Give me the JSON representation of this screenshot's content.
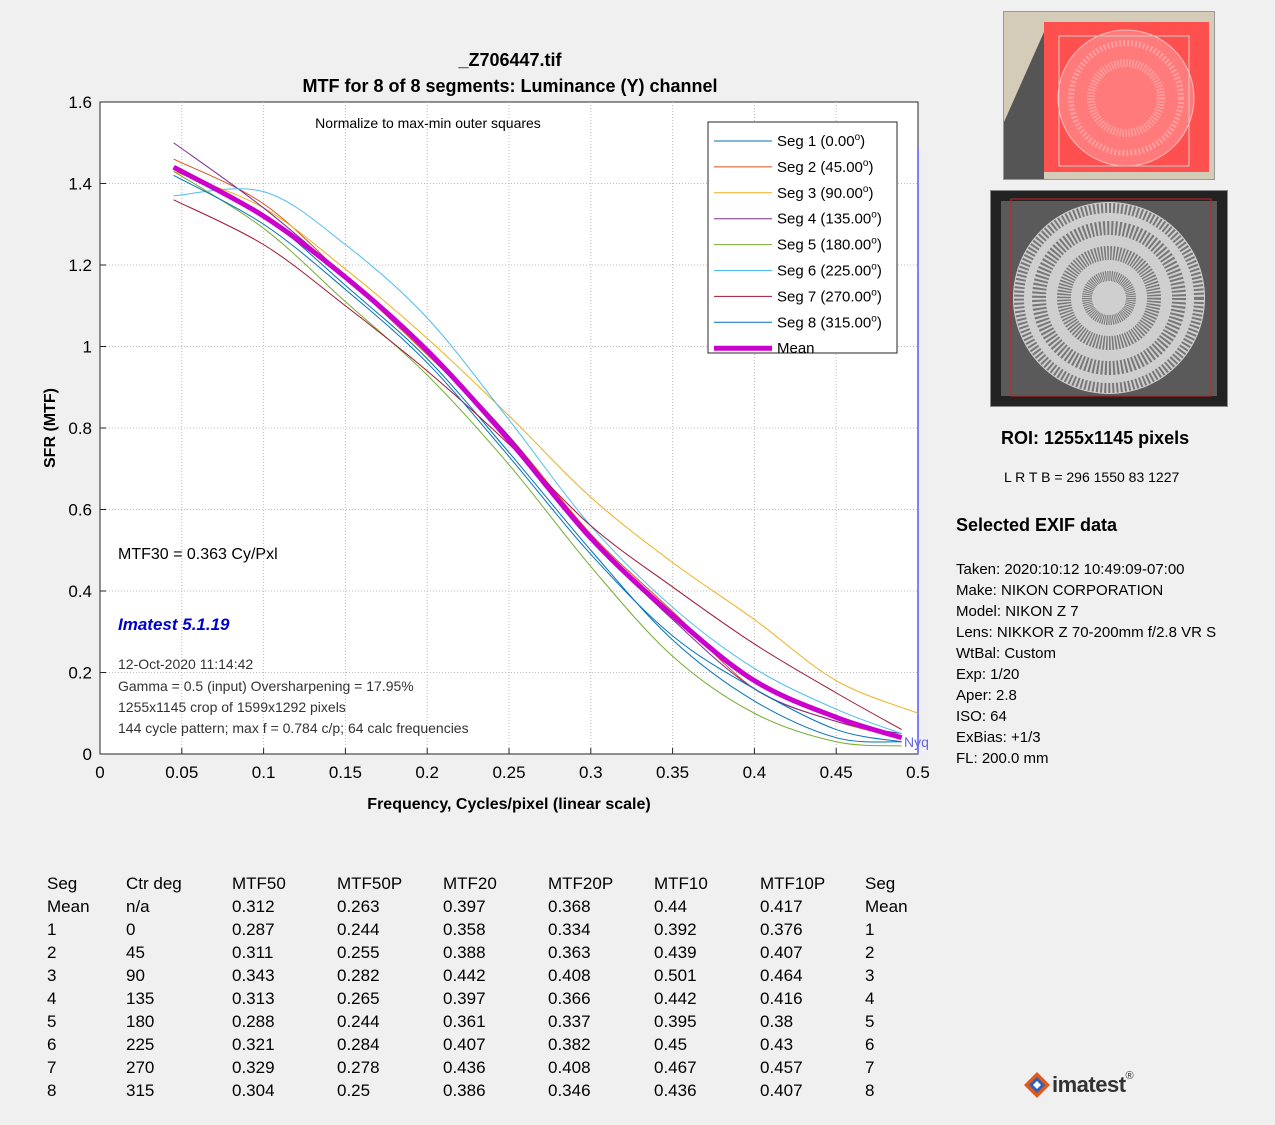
{
  "file_title": "_Z706447.tif",
  "subtitle": "MTF for 8 of 8 segments:  Luminance (Y) channel",
  "normalize_note": "Normalize to max-min outer squares",
  "mtf30_text": "MTF30 = 0.363 Cy/Pxl",
  "version": "Imatest 5.1.19",
  "info_lines": [
    "12-Oct-2020 11:14:42",
    "Gamma = 0.5 (input)  Oversharpening = 17.95%",
    "1255x1145 crop of 1599x1292 pixels",
    "144 cycle pattern; max f = 0.784 c/p;  64 calc frequencies"
  ],
  "nyquist_label": "Nyq",
  "roi": {
    "title": "ROI:  1255x1145 pixels",
    "lrtb": "L R  T B = 296  1550  83  1227"
  },
  "exif": {
    "heading": "Selected EXIF data",
    "lines": [
      "Taken: 2020:10:12 10:49:09-07:00",
      "Make:  NIKON CORPORATION",
      "Model: NIKON Z 7",
      "Lens:  NIKKOR Z 70-200mm f/2.8 VR S",
      "WtBal: Custom",
      "Exp:   1/20",
      "Aper:  2.8",
      "ISO:   64",
      "ExBias: +1/3",
      "FL:  200.0 mm"
    ]
  },
  "table": {
    "headers": [
      "Seg",
      "Ctr deg",
      "MTF50",
      "MTF50P",
      "MTF20",
      "MTF20P",
      "MTF10",
      "MTF10P",
      "Seg"
    ],
    "rows": [
      [
        "Mean",
        "n/a",
        "0.312",
        "0.263",
        "0.397",
        "0.368",
        "0.44",
        "0.417",
        "Mean"
      ],
      [
        "1",
        "0",
        "0.287",
        "0.244",
        "0.358",
        "0.334",
        "0.392",
        "0.376",
        "1"
      ],
      [
        "2",
        "45",
        "0.311",
        "0.255",
        "0.388",
        "0.363",
        "0.439",
        "0.407",
        "2"
      ],
      [
        "3",
        "90",
        "0.343",
        "0.282",
        "0.442",
        "0.408",
        "0.501",
        "0.464",
        "3"
      ],
      [
        "4",
        "135",
        "0.313",
        "0.265",
        "0.397",
        "0.366",
        "0.442",
        "0.416",
        "4"
      ],
      [
        "5",
        "180",
        "0.288",
        "0.244",
        "0.361",
        "0.337",
        "0.395",
        "0.38",
        "5"
      ],
      [
        "6",
        "225",
        "0.321",
        "0.284",
        "0.407",
        "0.382",
        "0.45",
        "0.43",
        "6"
      ],
      [
        "7",
        "270",
        "0.329",
        "0.278",
        "0.436",
        "0.408",
        "0.467",
        "0.457",
        "7"
      ],
      [
        "8",
        "315",
        "0.304",
        "0.25",
        "0.386",
        "0.346",
        "0.436",
        "0.407",
        "8"
      ]
    ]
  },
  "logo_text": "imatest",
  "chart_data": {
    "type": "line",
    "xlabel": "Frequency, Cycles/pixel (linear scale)",
    "ylabel": "SFR (MTF)",
    "xlim": [
      0,
      0.5
    ],
    "ylim": [
      0,
      1.6
    ],
    "x_ticks": [
      0,
      0.05,
      0.1,
      0.15,
      0.2,
      0.25,
      0.3,
      0.35,
      0.4,
      0.45,
      0.5
    ],
    "x_tick_labels": [
      "0",
      "0.05",
      "0.1",
      "0.15",
      "0.2",
      "0.25",
      "0.3",
      "0.35",
      "0.4",
      "0.45",
      "0.5"
    ],
    "y_ticks": [
      0,
      0.2,
      0.4,
      0.6,
      0.8,
      1,
      1.2,
      1.4,
      1.6
    ],
    "y_tick_labels": [
      "0",
      "0.2",
      "0.4",
      "0.6",
      "0.8",
      "1",
      "1.2",
      "1.4",
      "1.6"
    ],
    "grid": true,
    "legend_position": "top-right",
    "nyquist_x": 0.5,
    "series": [
      {
        "name": "Seg 1 (0.00",
        "sup": "o",
        "color": "#0072bd",
        "width": 1,
        "x": [
          0.045,
          0.1,
          0.15,
          0.2,
          0.25,
          0.3,
          0.35,
          0.4,
          0.45,
          0.49
        ],
        "y": [
          1.44,
          1.32,
          1.15,
          0.97,
          0.74,
          0.5,
          0.28,
          0.13,
          0.04,
          0.03
        ]
      },
      {
        "name": "Seg 2 (45.00",
        "sup": "o",
        "color": "#d95319",
        "width": 1,
        "x": [
          0.045,
          0.1,
          0.15,
          0.2,
          0.25,
          0.3,
          0.35,
          0.4,
          0.45,
          0.49
        ],
        "y": [
          1.46,
          1.35,
          1.17,
          0.98,
          0.78,
          0.54,
          0.35,
          0.16,
          0.08,
          0.04
        ]
      },
      {
        "name": "Seg 3 (90.00",
        "sup": "o",
        "color": "#edb120",
        "width": 1,
        "x": [
          0.045,
          0.1,
          0.15,
          0.2,
          0.25,
          0.3,
          0.35,
          0.4,
          0.45,
          0.5
        ],
        "y": [
          1.43,
          1.34,
          1.19,
          1.02,
          0.83,
          0.63,
          0.47,
          0.33,
          0.18,
          0.1
        ]
      },
      {
        "name": "Seg 4 (135.00",
        "sup": "o",
        "color": "#7e2f8e",
        "width": 1,
        "x": [
          0.045,
          0.1,
          0.15,
          0.2,
          0.25,
          0.3,
          0.35,
          0.4,
          0.45,
          0.49
        ],
        "y": [
          1.5,
          1.34,
          1.17,
          0.99,
          0.78,
          0.53,
          0.33,
          0.16,
          0.08,
          0.05
        ]
      },
      {
        "name": "Seg 5 (180.00",
        "sup": "o",
        "color": "#77ac30",
        "width": 1,
        "x": [
          0.045,
          0.1,
          0.15,
          0.2,
          0.25,
          0.3,
          0.35,
          0.4,
          0.45,
          0.49
        ],
        "y": [
          1.43,
          1.29,
          1.11,
          0.93,
          0.71,
          0.46,
          0.24,
          0.1,
          0.03,
          0.02
        ]
      },
      {
        "name": "Seg 6 (225.00",
        "sup": "o",
        "color": "#4dbeee",
        "width": 1,
        "x": [
          0.045,
          0.1,
          0.15,
          0.2,
          0.25,
          0.3,
          0.35,
          0.4,
          0.45,
          0.49
        ],
        "y": [
          1.37,
          1.38,
          1.25,
          1.07,
          0.82,
          0.56,
          0.36,
          0.21,
          0.11,
          0.05
        ]
      },
      {
        "name": "Seg 7 (270.00",
        "sup": "o",
        "color": "#a2142f",
        "width": 1,
        "x": [
          0.045,
          0.1,
          0.15,
          0.2,
          0.25,
          0.3,
          0.35,
          0.4,
          0.45,
          0.49
        ],
        "y": [
          1.36,
          1.25,
          1.1,
          0.94,
          0.76,
          0.56,
          0.41,
          0.27,
          0.15,
          0.06
        ]
      },
      {
        "name": "Seg 8 (315.00",
        "sup": "o",
        "color": "#0072bd",
        "width": 1,
        "x": [
          0.045,
          0.1,
          0.15,
          0.2,
          0.25,
          0.3,
          0.35,
          0.4,
          0.45,
          0.49
        ],
        "y": [
          1.42,
          1.3,
          1.14,
          0.96,
          0.73,
          0.49,
          0.29,
          0.16,
          0.06,
          0.03
        ]
      },
      {
        "name": "Mean",
        "sup": "",
        "color": "#cc00cc",
        "width": 5,
        "x": [
          0.045,
          0.1,
          0.15,
          0.2,
          0.25,
          0.3,
          0.35,
          0.4,
          0.45,
          0.49
        ],
        "y": [
          1.44,
          1.32,
          1.17,
          0.99,
          0.77,
          0.53,
          0.34,
          0.18,
          0.09,
          0.04
        ]
      }
    ]
  }
}
